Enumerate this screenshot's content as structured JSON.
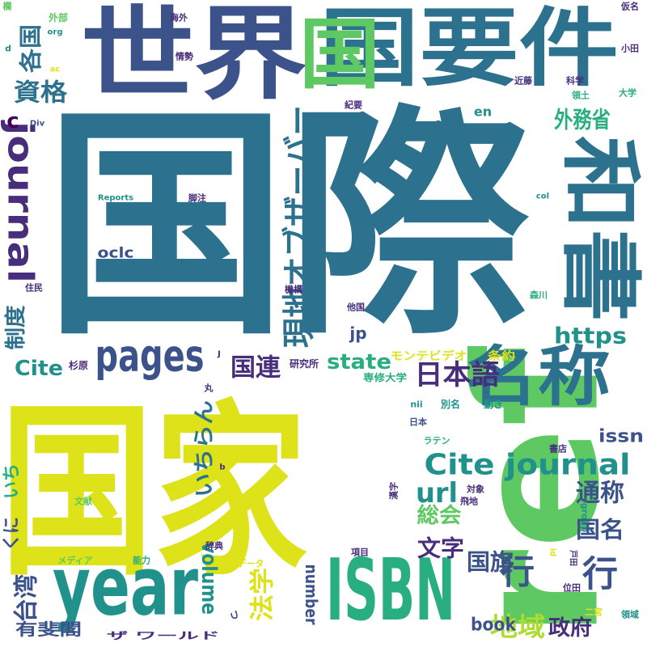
{
  "colors": {
    "background": "#ffffff",
    "palette": [
      "#440154",
      "#472d7b",
      "#3b528b",
      "#2c728e",
      "#21918c",
      "#28ae80",
      "#5ec962",
      "#addc30",
      "#dde318"
    ]
  },
  "words": [
    {
      "text": "国際",
      "color": "#2c728e"
    },
    {
      "text": "国家",
      "color": "#dde318"
    },
    {
      "text": "ref",
      "color": "#5ec962"
    },
    {
      "text": "世界",
      "color": "#3b528b"
    },
    {
      "text": "国要件",
      "color": "#2c728e"
    },
    {
      "text": "和書",
      "color": "#2c728e"
    },
    {
      "text": "ISBN",
      "color": "#28ae80"
    },
    {
      "text": "year",
      "color": "#21918c"
    },
    {
      "text": "名称",
      "color": "#2c728e"
    },
    {
      "text": "pages",
      "color": "#3b528b"
    },
    {
      "text": "journal",
      "color": "#472d7b"
    },
    {
      "text": "現地オブザーバー",
      "color": "#2c728e"
    },
    {
      "text": "Cite journal",
      "color": "#21918c"
    },
    {
      "text": "国",
      "color": "#5ec962"
    },
    {
      "text": "日本語",
      "color": "#472d7b"
    },
    {
      "text": "外務省",
      "color": "#28ae80"
    },
    {
      "text": "https",
      "color": "#21918c"
    },
    {
      "text": "資格",
      "color": "#2c728e"
    },
    {
      "text": "各国",
      "color": "#2c728e"
    },
    {
      "text": "行",
      "color": "#3b528b"
    },
    {
      "text": "行",
      "color": "#3b528b"
    },
    {
      "text": "国連",
      "color": "#472d7b"
    },
    {
      "text": "state",
      "color": "#28ae80"
    },
    {
      "text": "url",
      "color": "#21918c"
    },
    {
      "text": "通称",
      "color": "#3b528b"
    },
    {
      "text": "国名",
      "color": "#3b528b"
    },
    {
      "text": "総会",
      "color": "#5ec962"
    },
    {
      "text": "文字",
      "color": "#472d7b"
    },
    {
      "text": "国旗",
      "color": "#3b528b"
    },
    {
      "text": "地域",
      "color": "#addc30"
    },
    {
      "text": "政府",
      "color": "#472d7b"
    },
    {
      "text": "法学",
      "color": "#dde318"
    },
    {
      "text": "台湾",
      "color": "#3b528b"
    },
    {
      "text": "制度",
      "color": "#2c728e"
    },
    {
      "text": "Cite",
      "color": "#21918c"
    },
    {
      "text": "いちらん",
      "color": "#2c728e"
    },
    {
      "text": "いち",
      "color": "#28ae80"
    },
    {
      "text": "volume",
      "color": "#21918c"
    },
    {
      "text": "number",
      "color": "#3b528b"
    },
    {
      "text": "book",
      "color": "#3b528b"
    },
    {
      "text": "issn",
      "color": "#3b528b"
    },
    {
      "text": "oclc",
      "color": "#3b528b"
    },
    {
      "text": "jp",
      "color": "#3b528b"
    },
    {
      "text": "en",
      "color": "#21918c"
    },
    {
      "text": "くに",
      "color": "#3b528b"
    },
    {
      "text": "有斐閣",
      "color": "#3b528b"
    },
    {
      "text": "c",
      "color": "#440154"
    },
    {
      "text": "Div",
      "color": "#3b528b"
    },
    {
      "text": "Reports",
      "color": "#21918c"
    },
    {
      "text": "脚注",
      "color": "#472d7b"
    },
    {
      "text": "col",
      "color": "#21918c"
    },
    {
      "text": "モンテビデオ",
      "color": "#dde318"
    },
    {
      "text": "条約",
      "color": "#dde318"
    },
    {
      "text": "研究所",
      "color": "#472d7b"
    },
    {
      "text": "杉原",
      "color": "#472d7b"
    },
    {
      "text": "専修大学",
      "color": "#28ae80"
    },
    {
      "text": "別名",
      "color": "#21918c"
    },
    {
      "text": "動き",
      "color": "#21918c"
    },
    {
      "text": "nii",
      "color": "#21918c"
    },
    {
      "text": "日本",
      "color": "#3b528b"
    },
    {
      "text": "ラテン",
      "color": "#28ae80"
    },
    {
      "text": "書店",
      "color": "#472d7b"
    },
    {
      "text": "文献",
      "color": "#5ec962"
    },
    {
      "text": "漢字",
      "color": "#472d7b"
    },
    {
      "text": "対象",
      "color": "#472d7b"
    },
    {
      "text": "飛地",
      "color": "#472d7b"
    },
    {
      "text": "group",
      "color": "#21918c"
    },
    {
      "text": "メディア",
      "color": "#5ec962"
    },
    {
      "text": "能力",
      "color": "#28ae80"
    },
    {
      "text": "辞典",
      "color": "#472d7b"
    },
    {
      "text": "データ",
      "color": "#dde318"
    },
    {
      "text": "項目",
      "color": "#472d7b"
    },
    {
      "text": "ザ ワールド",
      "color": "#472d7b"
    },
    {
      "text": "位田",
      "color": "#472d7b"
    },
    {
      "text": "二宮",
      "color": "#dde318"
    },
    {
      "text": "領域",
      "color": "#21918c"
    },
    {
      "text": "外部",
      "color": "#5ec962"
    },
    {
      "text": "org",
      "color": "#21918c"
    },
    {
      "text": "海外",
      "color": "#472d7b"
    },
    {
      "text": "情勢",
      "color": "#472d7b"
    },
    {
      "text": "仮名",
      "color": "#472d7b"
    },
    {
      "text": "小田",
      "color": "#472d7b"
    },
    {
      "text": "近藤",
      "color": "#472d7b"
    },
    {
      "text": "科学",
      "color": "#472d7b"
    },
    {
      "text": "大学",
      "color": "#28ae80"
    },
    {
      "text": "領土",
      "color": "#28ae80"
    },
    {
      "text": "紀要",
      "color": "#472d7b"
    },
    {
      "text": "住民",
      "color": "#472d7b"
    },
    {
      "text": "機構",
      "color": "#472d7b"
    },
    {
      "text": "森川",
      "color": "#28ae80"
    },
    {
      "text": "他国",
      "color": "#472d7b"
    },
    {
      "text": "丸",
      "color": "#472d7b"
    },
    {
      "text": "戸田",
      "color": "#472d7b"
    },
    {
      "text": "欄",
      "color": "#5ec962"
    },
    {
      "text": "d",
      "color": "#21918c"
    },
    {
      "text": "ac",
      "color": "#dde318"
    },
    {
      "text": "id",
      "color": "#dde318"
    },
    {
      "text": "J",
      "color": "#472d7b"
    },
    {
      "text": "b",
      "color": "#472d7b"
    },
    {
      "text": "っ",
      "color": "#3b528b"
    }
  ]
}
